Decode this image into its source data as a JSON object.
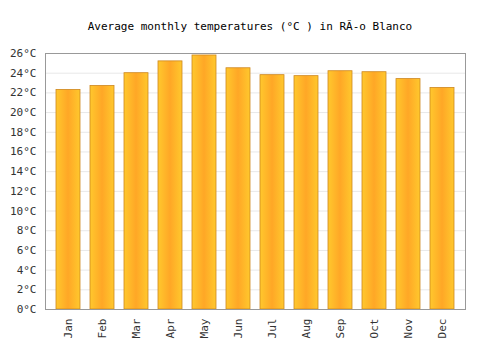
{
  "chart_data": {
    "type": "bar",
    "title": "Average monthly temperatures (°C ) in RÃ-o Blanco",
    "categories": [
      "Jan",
      "Feb",
      "Mar",
      "Apr",
      "May",
      "Jun",
      "Jul",
      "Aug",
      "Sep",
      "Oct",
      "Nov",
      "Dec"
    ],
    "values": [
      22.3,
      22.7,
      24.0,
      25.2,
      25.8,
      24.5,
      23.8,
      23.7,
      24.2,
      24.1,
      23.4,
      22.5
    ],
    "color": "#ffa726",
    "ylim": [
      0,
      26
    ],
    "yticks": [
      {
        "value": 0,
        "label": "0°C"
      },
      {
        "value": 2,
        "label": "2°C"
      },
      {
        "value": 4,
        "label": "4°C"
      },
      {
        "value": 6,
        "label": "6°C"
      },
      {
        "value": 8,
        "label": "8°C"
      },
      {
        "value": 10,
        "label": "10°C"
      },
      {
        "value": 12,
        "label": "12°C"
      },
      {
        "value": 14,
        "label": "14°C"
      },
      {
        "value": 16,
        "label": "16°C"
      },
      {
        "value": 18,
        "label": "18°C"
      },
      {
        "value": 20,
        "label": "20°C"
      },
      {
        "value": 22,
        "label": "22°C"
      },
      {
        "value": 24,
        "label": "24°C"
      },
      {
        "value": 26,
        "label": "26°C"
      }
    ],
    "grid": true
  }
}
